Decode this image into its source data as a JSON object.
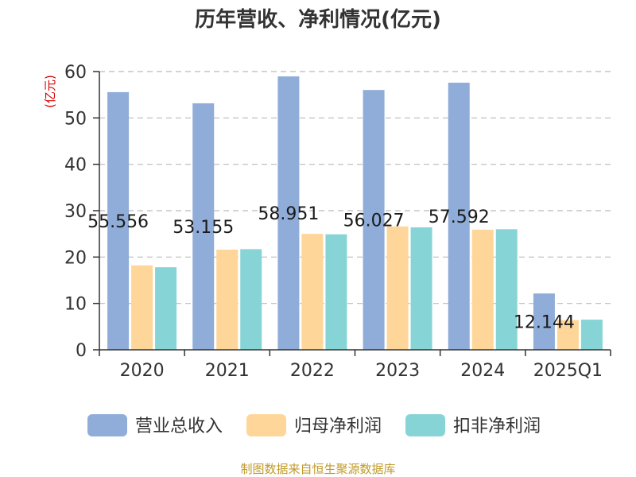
{
  "chart_data": {
    "type": "bar",
    "title": "历年营收、净利情况(亿元)",
    "ylabel": "(亿元)",
    "xlabel": "",
    "categories": [
      "2020",
      "2021",
      "2022",
      "2023",
      "2024",
      "2025Q1"
    ],
    "ylim": [
      0,
      60
    ],
    "yticks": [
      0,
      10,
      20,
      30,
      40,
      50,
      60
    ],
    "grid": true,
    "legend_position": "bottom",
    "series": [
      {
        "name": "营业总收入",
        "color": "#8fadd8",
        "values": [
          55.556,
          53.155,
          58.951,
          56.027,
          57.592,
          12.144
        ],
        "labels": [
          "55.556",
          "53.155",
          "58.951",
          "56.027",
          "57.592",
          "12.144"
        ]
      },
      {
        "name": "归母净利润",
        "color": "#ffd699",
        "values": [
          18.2,
          21.6,
          25.0,
          26.6,
          25.9,
          6.4
        ]
      },
      {
        "name": "扣非净利润",
        "color": "#87d4d7",
        "values": [
          17.8,
          21.7,
          24.9,
          26.4,
          26.0,
          6.5
        ]
      }
    ]
  },
  "source": "制图数据来自恒生聚源数据库"
}
